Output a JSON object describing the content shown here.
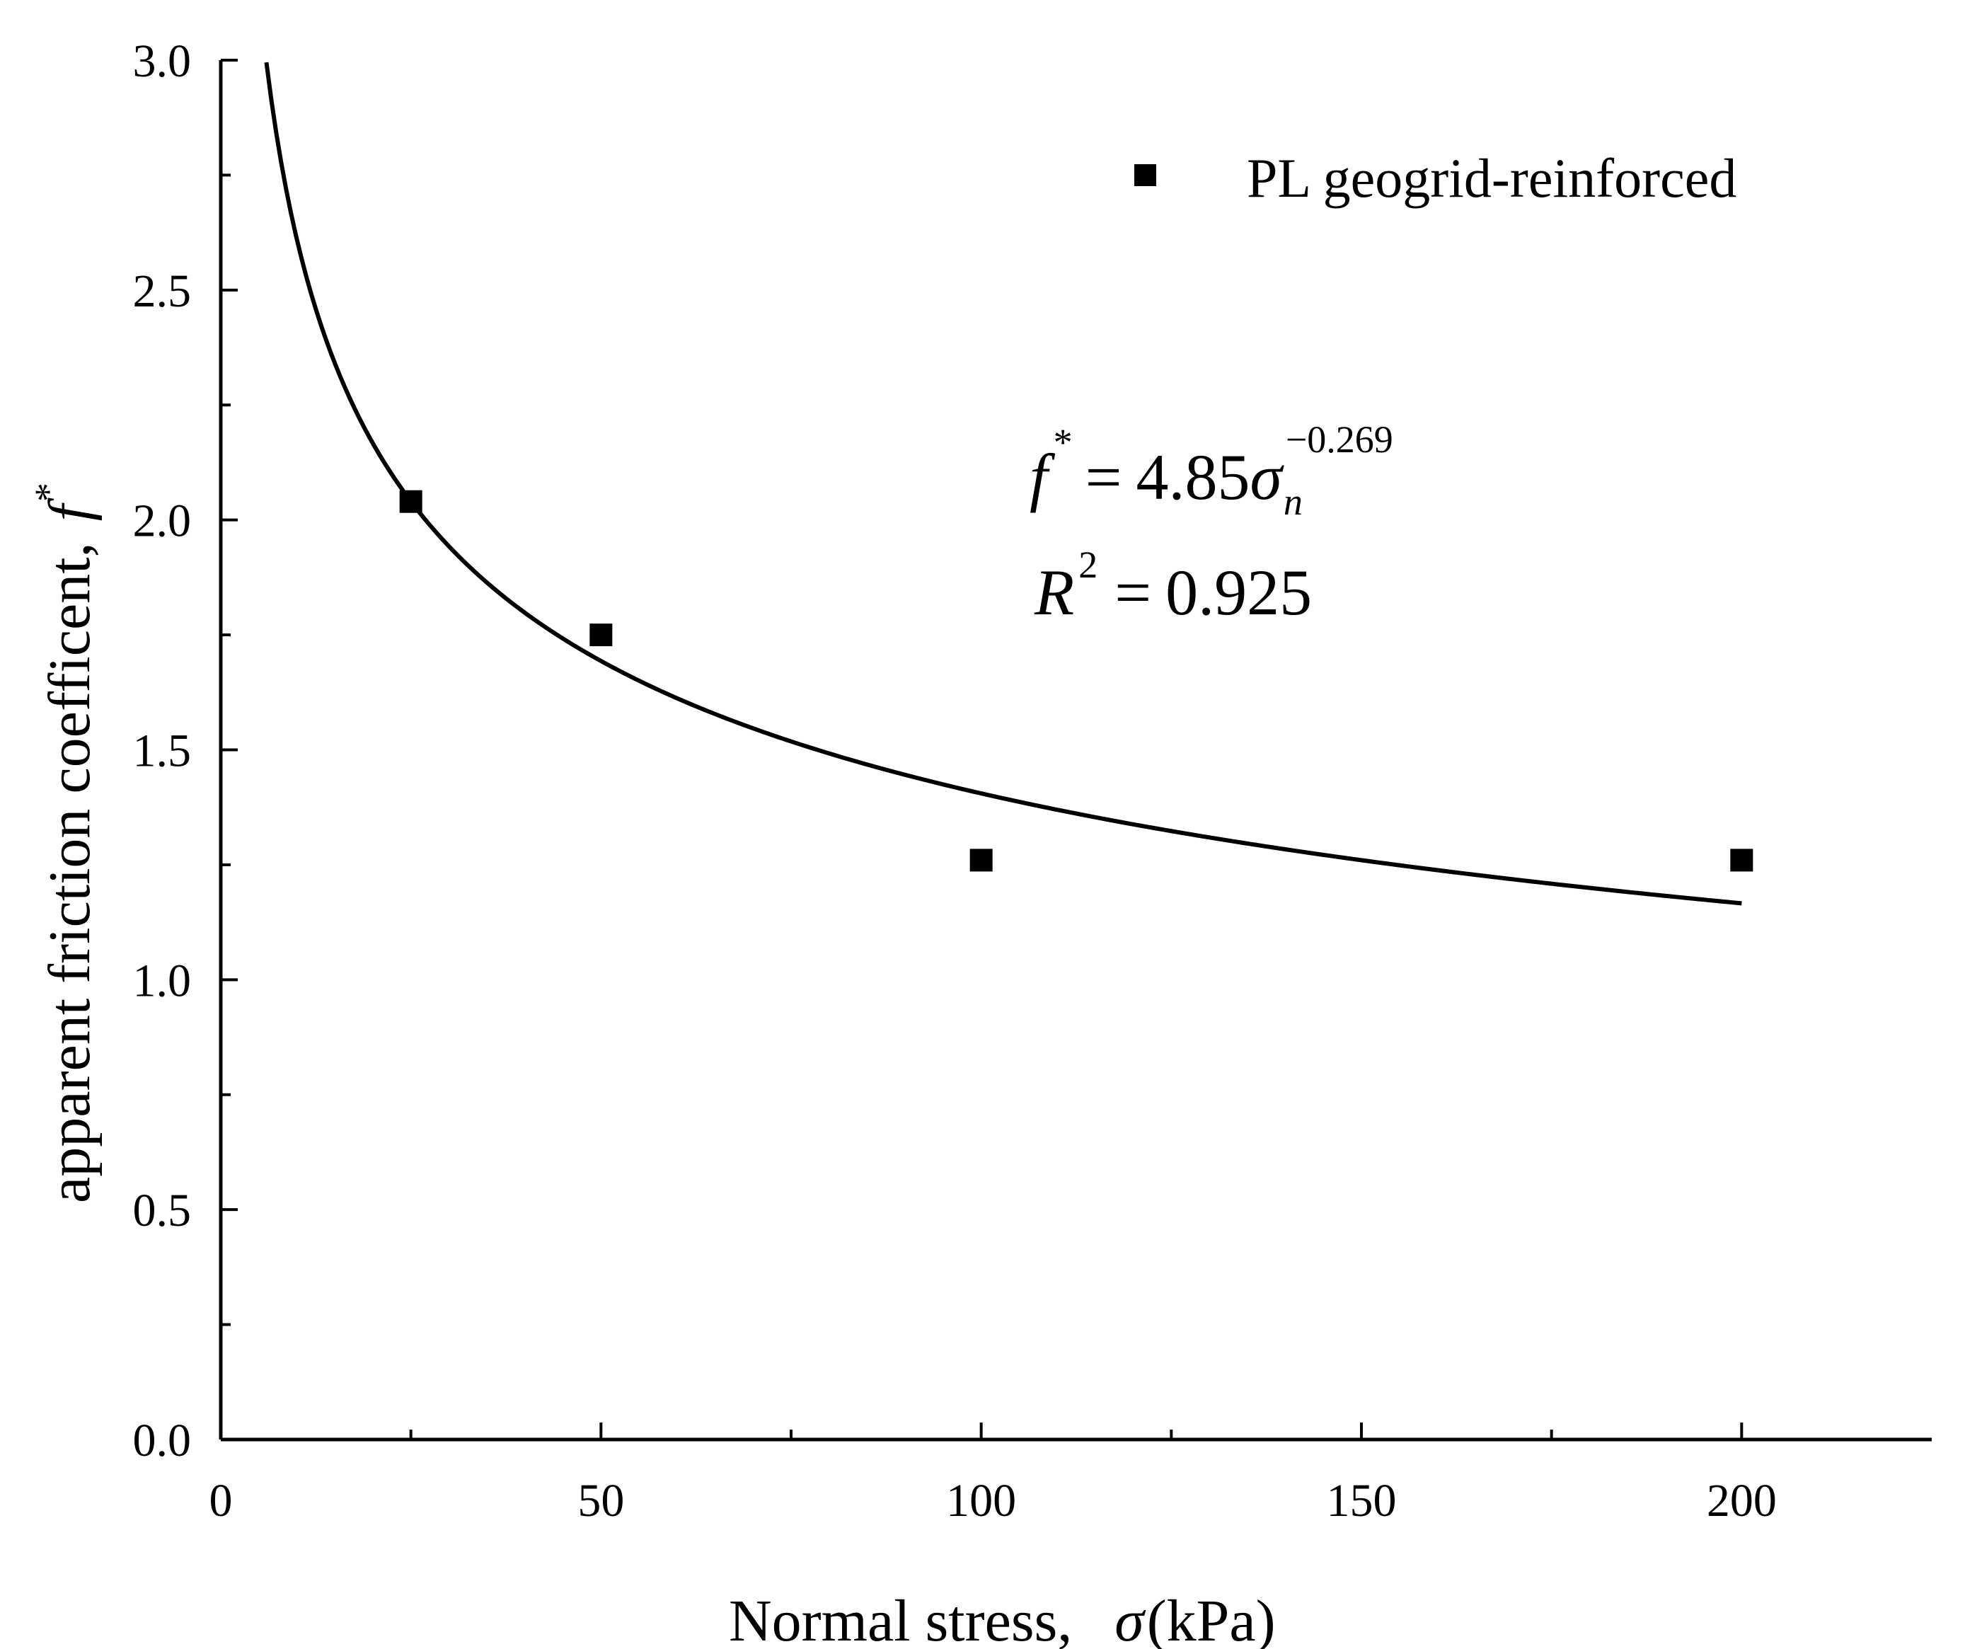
{
  "chart_data": {
    "type": "scatter",
    "title": "",
    "xlabel_prefix": "Normal stress,",
    "xlabel_symbol": "σ",
    "xlabel_unit": "(kPa)",
    "ylabel_prefix": "apparent friction coefficent,",
    "ylabel_symbol": "f",
    "ylabel_sup": "*",
    "xlim": [
      0,
      225
    ],
    "ylim": [
      0.0,
      3.0
    ],
    "x_ticks": [
      0,
      50,
      100,
      150,
      200
    ],
    "x_tick_labels": [
      "0",
      "50",
      "100",
      "150",
      "200"
    ],
    "y_ticks": [
      0.0,
      0.5,
      1.0,
      1.5,
      2.0,
      2.5,
      3.0
    ],
    "y_tick_labels": [
      "0.0",
      "0.5",
      "1.0",
      "1.5",
      "2.0",
      "2.5",
      "3.0"
    ],
    "grid": false,
    "legend_position": "top-right",
    "series": [
      {
        "name": "PL geogrid-reinforced",
        "marker": "square",
        "color": "#000000",
        "x": [
          25,
          50,
          100,
          200
        ],
        "y": [
          2.04,
          1.75,
          1.26,
          1.26
        ]
      }
    ],
    "fit": {
      "type": "power",
      "coefficient": 4.85,
      "exponent": -0.269,
      "x_range": [
        6,
        200
      ],
      "color": "#000000"
    },
    "annotation": {
      "lhs": "f",
      "lhs_sup": "*",
      "equals": "=",
      "coefficient_text": "4.85",
      "variable": "σ",
      "variable_sub": "n",
      "exponent_text": "−0.269",
      "r2_symbol": "R",
      "r2_sup": "2",
      "r2_value": "0.925"
    }
  }
}
